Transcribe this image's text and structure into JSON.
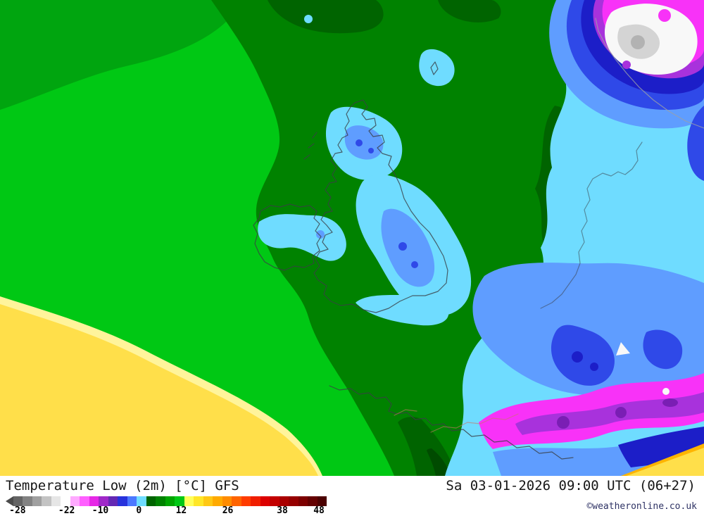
{
  "footer": {
    "title": "Temperature Low (2m) [°C] GFS",
    "datetime": "Sa 03-01-2026 09:00 UTC (06+27)",
    "copyright": "©weatheronline.co.uk"
  },
  "legend": {
    "arrow_color": "#4b4b4b",
    "colors": [
      "#646464",
      "#828282",
      "#a0a0a0",
      "#c3c3c3",
      "#e6e6e6",
      "#ffffff",
      "#ffaaff",
      "#ff5fff",
      "#e628e6",
      "#a028c8",
      "#6428b4",
      "#2832dc",
      "#4b78ff",
      "#6edcff",
      "#006400",
      "#008200",
      "#00a500",
      "#00c814",
      "#ffff5a",
      "#ffe628",
      "#ffc814",
      "#ffaa00",
      "#ff8c00",
      "#ff6400",
      "#ff3c00",
      "#f01e00",
      "#dc0000",
      "#c30000",
      "#aa0000",
      "#960000",
      "#7d0000",
      "#640000",
      "#4b0000"
    ],
    "ticks": [
      {
        "label": "-28",
        "pos": 3.7
      },
      {
        "label": "-22",
        "pos": 19.0
      },
      {
        "label": "-10",
        "pos": 29.5
      },
      {
        "label": "0",
        "pos": 41.5
      },
      {
        "label": "12",
        "pos": 54.7
      },
      {
        "label": "26",
        "pos": 69.2
      },
      {
        "label": "38",
        "pos": 86.2
      },
      {
        "label": "48",
        "pos": 97.6
      }
    ]
  },
  "palette": {
    "greenBright": "#00c814",
    "greenMid": "#00a50f",
    "greenDark": "#008200",
    "greenDarker": "#006400",
    "greenDarkest": "#004b00",
    "yellow": "#ffdf4a",
    "yellowPale": "#fff49b",
    "cyan": "#6fdcff",
    "blueLight": "#5f9dff",
    "blueRoyal": "#2f49e8",
    "navy": "#1c1ec8",
    "magenta": "#f832f8",
    "purple": "#a832dc",
    "purpleDark": "#7a1eb4",
    "white": "#f8f8f8",
    "grayLight": "#d4d4d4",
    "gray": "#b2b2b2",
    "orange": "#ffb400",
    "coast": "#3a3f45",
    "coastLight": "#9aa0a8",
    "border": "#c87864"
  }
}
